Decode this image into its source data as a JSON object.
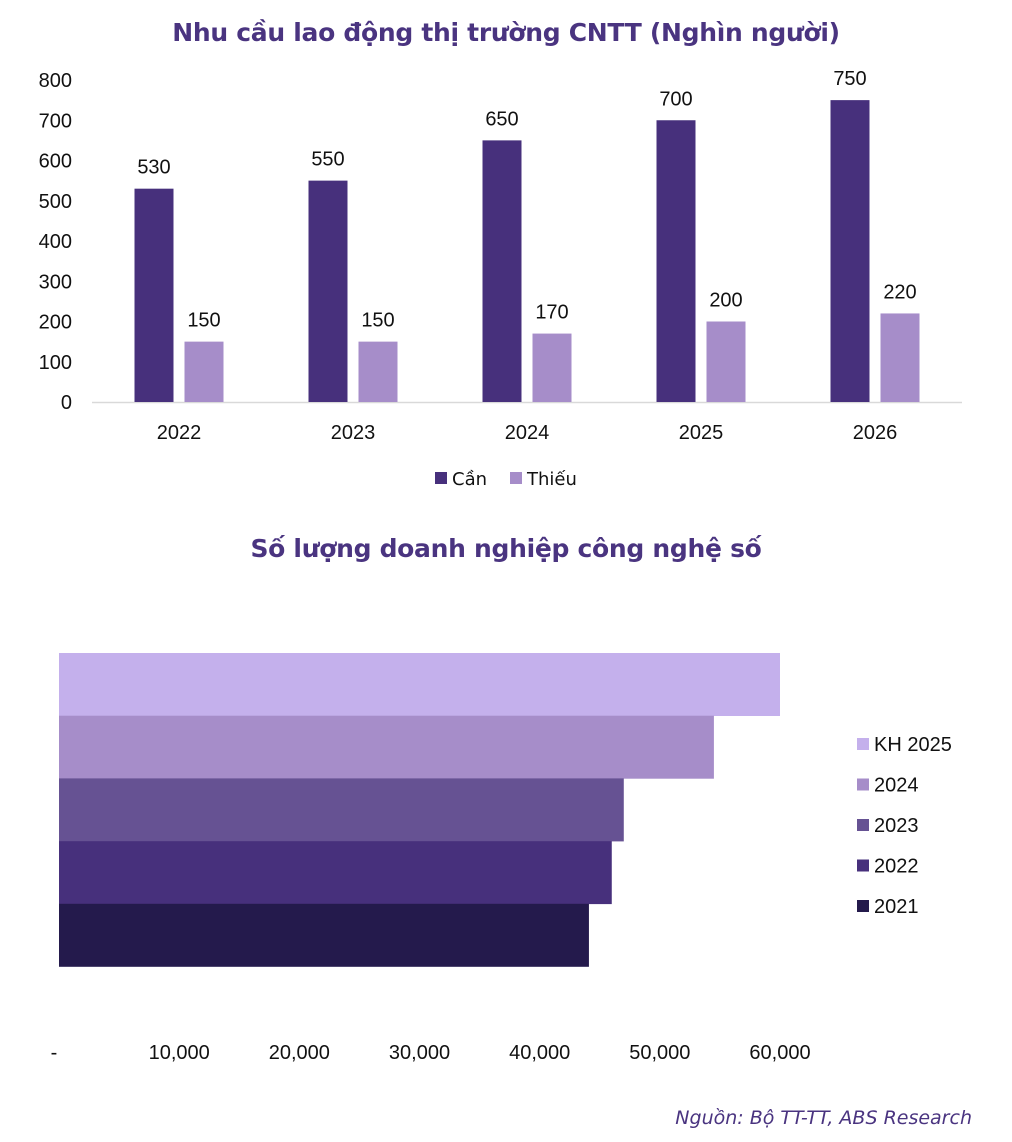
{
  "chart_data": [
    {
      "type": "bar",
      "title": "Nhu cầu lao động thị trường CNTT (Nghìn người)",
      "xlabel": "",
      "ylabel": "",
      "categories": [
        "2022",
        "2023",
        "2024",
        "2025",
        "2026"
      ],
      "series": [
        {
          "name": "Cần",
          "color": "#47307c",
          "values": [
            530,
            550,
            650,
            700,
            750
          ]
        },
        {
          "name": "Thiếu",
          "color": "#a68dc9",
          "values": [
            150,
            150,
            170,
            200,
            220
          ]
        }
      ],
      "ylim": [
        0,
        800
      ],
      "yticks": [
        "0",
        "100",
        "200",
        "300",
        "400",
        "500",
        "600",
        "700",
        "800"
      ],
      "data_labels": true,
      "grid": false,
      "legend_position": "bottom"
    },
    {
      "type": "bar",
      "orientation": "horizontal",
      "title": "Số lượng doanh nghiệp công nghệ số",
      "xlabel": "",
      "ylabel": "",
      "series": [
        {
          "name": "KH 2025",
          "color": "#c4b0ec",
          "value": 60000
        },
        {
          "name": "2024",
          "color": "#a68dc9",
          "value": 54500
        },
        {
          "name": "2023",
          "color": "#665293",
          "value": 47000
        },
        {
          "name": "2022",
          "color": "#47307c",
          "value": 46000
        },
        {
          "name": "2021",
          "color": "#241a4c",
          "value": 44100
        }
      ],
      "xlim": [
        0,
        60000
      ],
      "xticks": [
        "-",
        "10,000",
        "20,000",
        "30,000",
        "40,000",
        "50,000",
        "60,000"
      ],
      "grid": false,
      "legend_position": "right"
    }
  ],
  "source_note": "Nguồn: Bộ TT-TT, ABS Research"
}
